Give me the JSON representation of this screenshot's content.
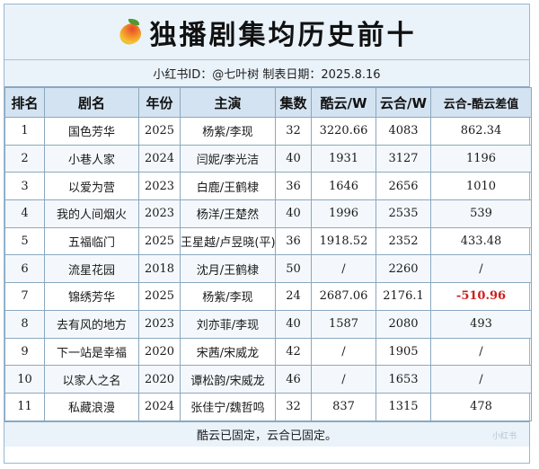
{
  "title": "独播剧集均历史前十",
  "subtitle": "小红书ID：@七叶树   制表日期：2025.8.16",
  "columns": [
    "排名",
    "剧名",
    "年份",
    "主演",
    "集数",
    "酷云/W",
    "云合/W",
    "云合-酷云差值"
  ],
  "rows": [
    {
      "rank": "1",
      "name": "国色芳华",
      "year": "2025",
      "cast": "杨紫/李现",
      "episodes": "32",
      "kuyun": "3220.66",
      "yunhe": "4083",
      "diff": "862.34"
    },
    {
      "rank": "2",
      "name": "小巷人家",
      "year": "2024",
      "cast": "闫妮/李光洁",
      "episodes": "40",
      "kuyun": "1931",
      "yunhe": "3127",
      "diff": "1196"
    },
    {
      "rank": "3",
      "name": "以爱为营",
      "year": "2023",
      "cast": "白鹿/王鹤棣",
      "episodes": "36",
      "kuyun": "1646",
      "yunhe": "2656",
      "diff": "1010"
    },
    {
      "rank": "4",
      "name": "我的人间烟火",
      "year": "2023",
      "cast": "杨洋/王楚然",
      "episodes": "40",
      "kuyun": "1996",
      "yunhe": "2535",
      "diff": "539"
    },
    {
      "rank": "5",
      "name": "五福临门",
      "year": "2025",
      "cast": "王星越/卢昱晓(平)",
      "episodes": "36",
      "kuyun": "1918.52",
      "yunhe": "2352",
      "diff": "433.48"
    },
    {
      "rank": "6",
      "name": "流星花园",
      "year": "2018",
      "cast": "沈月/王鹤棣",
      "episodes": "50",
      "kuyun": "/",
      "yunhe": "2260",
      "diff": "/"
    },
    {
      "rank": "7",
      "name": "锦绣芳华",
      "year": "2025",
      "cast": "杨紫/李现",
      "episodes": "24",
      "kuyun": "2687.06",
      "yunhe": "2176.1",
      "diff": "-510.96",
      "negative": true
    },
    {
      "rank": "8",
      "name": "去有风的地方",
      "year": "2023",
      "cast": "刘亦菲/李现",
      "episodes": "40",
      "kuyun": "1587",
      "yunhe": "2080",
      "diff": "493"
    },
    {
      "rank": "9",
      "name": "下一站是幸福",
      "year": "2020",
      "cast": "宋茜/宋威龙",
      "episodes": "42",
      "kuyun": "/",
      "yunhe": "1905",
      "diff": "/"
    },
    {
      "rank": "10",
      "name": "以家人之名",
      "year": "2020",
      "cast": "谭松韵/宋威龙",
      "episodes": "46",
      "kuyun": "/",
      "yunhe": "1653",
      "diff": "/"
    },
    {
      "rank": "11",
      "name": "私藏浪漫",
      "year": "2024",
      "cast": "张佳宁/魏哲鸣",
      "episodes": "32",
      "kuyun": "837",
      "yunhe": "1315",
      "diff": "478"
    }
  ],
  "footer": "酷云已固定，云合已固定。",
  "watermark": "小红书",
  "icons": {
    "title_icon": "mango-icon"
  },
  "colors": {
    "header_bg": "#d4e3f1",
    "negative": "#cc1f1f",
    "border": "#8aa8c0"
  }
}
